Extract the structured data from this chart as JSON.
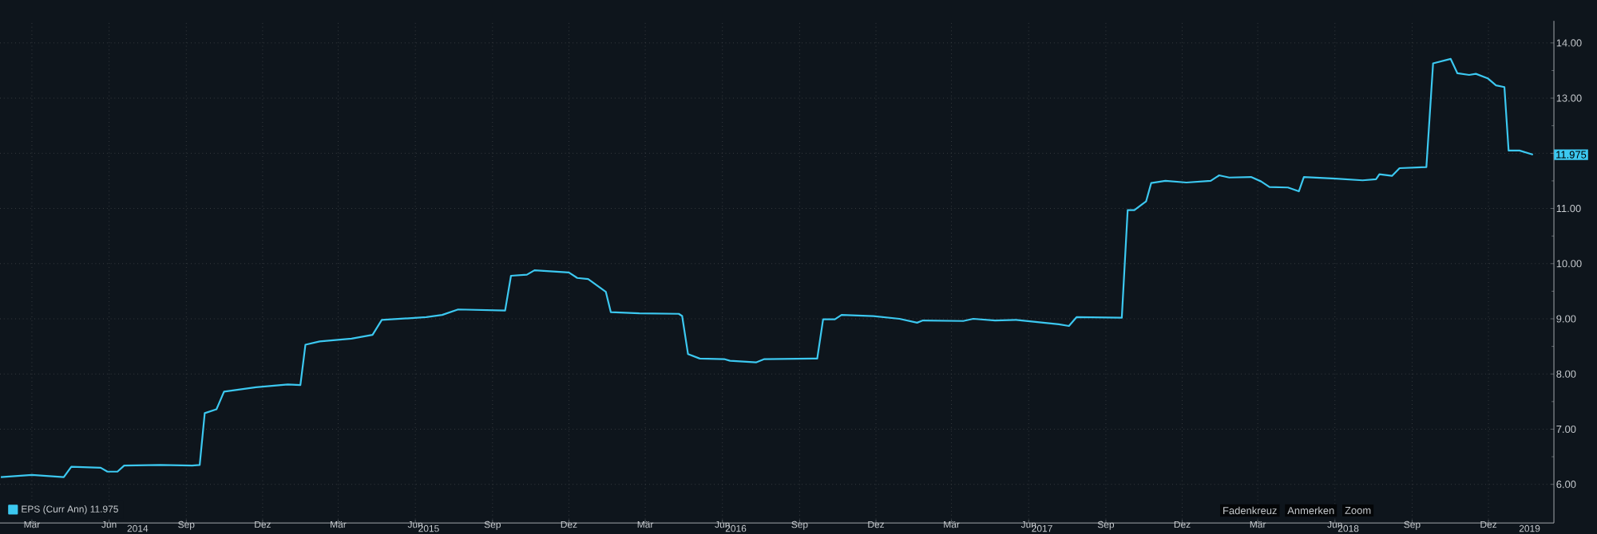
{
  "chart_data": {
    "type": "line",
    "x": [
      "2014-02-06",
      "2014-03-15",
      "2014-04-22",
      "2014-05-01",
      "2014-06-05",
      "2014-06-13",
      "2014-06-25",
      "2014-07-03",
      "2014-08-15",
      "2014-09-22",
      "2014-10-01",
      "2014-10-07",
      "2014-10-21",
      "2014-10-30",
      "2014-12-07",
      "2015-01-14",
      "2015-01-29",
      "2015-02-04",
      "2015-02-21",
      "2015-03-31",
      "2015-04-25",
      "2015-05-06",
      "2015-06-28",
      "2015-07-17",
      "2015-08-05",
      "2015-09-30",
      "2015-10-07",
      "2015-10-26",
      "2015-11-04",
      "2015-12-15",
      "2015-12-25",
      "2016-01-07",
      "2016-01-28",
      "2016-02-03",
      "2016-03-08",
      "2016-04-24",
      "2016-04-28",
      "2016-05-05",
      "2016-05-19",
      "2016-06-17",
      "2016-06-24",
      "2016-07-25",
      "2016-08-04",
      "2016-10-06",
      "2016-10-13",
      "2016-10-27",
      "2016-11-04",
      "2016-12-12",
      "2017-01-12",
      "2017-02-02",
      "2017-02-09",
      "2017-03-29",
      "2017-04-10",
      "2017-05-06",
      "2017-05-31",
      "2017-07-21",
      "2017-08-02",
      "2017-08-11",
      "2017-10-04",
      "2017-10-11",
      "2017-10-19",
      "2017-11-02",
      "2017-11-08",
      "2017-11-25",
      "2017-12-20",
      "2018-01-18",
      "2018-01-28",
      "2018-02-09",
      "2018-03-07",
      "2018-03-19",
      "2018-03-29",
      "2018-04-20",
      "2018-05-03",
      "2018-05-09",
      "2018-06-16",
      "2018-07-18",
      "2018-08-03",
      "2018-08-07",
      "2018-08-22",
      "2018-08-31",
      "2018-10-02",
      "2018-10-10",
      "2018-10-31",
      "2018-11-08",
      "2018-11-22",
      "2018-11-30",
      "2018-12-14",
      "2018-12-24",
      "2019-01-03",
      "2019-01-08",
      "2019-01-21",
      "2019-02-06"
    ],
    "series": [
      {
        "name": "EPS (Curr Ann) 11.975",
        "color": "#3cc8f0",
        "values": [
          6.13,
          6.17,
          6.13,
          6.32,
          6.3,
          6.23,
          6.23,
          6.34,
          6.35,
          6.34,
          6.35,
          7.29,
          7.36,
          7.68,
          7.76,
          7.81,
          7.8,
          8.53,
          8.59,
          8.64,
          8.71,
          8.98,
          9.03,
          9.07,
          9.17,
          9.15,
          9.78,
          9.8,
          9.88,
          9.84,
          9.74,
          9.72,
          9.49,
          9.12,
          9.1,
          9.09,
          9.05,
          8.36,
          8.28,
          8.27,
          8.24,
          8.21,
          8.27,
          8.28,
          8.99,
          8.99,
          9.07,
          9.05,
          9.0,
          8.93,
          8.97,
          8.96,
          9.0,
          8.97,
          8.98,
          8.9,
          8.87,
          9.03,
          9.02,
          10.97,
          10.97,
          11.13,
          11.46,
          11.5,
          11.47,
          11.5,
          11.6,
          11.56,
          11.57,
          11.49,
          11.39,
          11.38,
          11.31,
          11.57,
          11.54,
          11.51,
          11.53,
          11.62,
          11.59,
          11.73,
          11.75,
          13.63,
          13.71,
          13.45,
          13.42,
          13.44,
          13.36,
          13.23,
          13.2,
          12.05,
          12.05,
          11.975
        ]
      }
    ],
    "xlim": [
      "2014-02-05",
      "2019-03-03"
    ],
    "xticks": [
      {
        "value": "2014-03-15",
        "label": "Mär"
      },
      {
        "value": "2014-06-15",
        "label": "Jun"
      },
      {
        "value": "2014-09-15",
        "label": "Sep"
      },
      {
        "value": "2014-12-15",
        "label": "Dez"
      },
      {
        "value": "2015-03-15",
        "label": "Mär"
      },
      {
        "value": "2015-06-15",
        "label": "Jun"
      },
      {
        "value": "2015-09-15",
        "label": "Sep"
      },
      {
        "value": "2015-12-15",
        "label": "Dez"
      },
      {
        "value": "2016-03-15",
        "label": "Mär"
      },
      {
        "value": "2016-06-15",
        "label": "Jun"
      },
      {
        "value": "2016-09-15",
        "label": "Sep"
      },
      {
        "value": "2016-12-15",
        "label": "Dez"
      },
      {
        "value": "2017-03-15",
        "label": "Mär"
      },
      {
        "value": "2017-06-15",
        "label": "Jun"
      },
      {
        "value": "2017-09-15",
        "label": "Sep"
      },
      {
        "value": "2017-12-15",
        "label": "Dez"
      },
      {
        "value": "2018-03-15",
        "label": "Mär"
      },
      {
        "value": "2018-06-15",
        "label": "Jun"
      },
      {
        "value": "2018-09-15",
        "label": "Sep"
      },
      {
        "value": "2018-12-15",
        "label": "Dez"
      }
    ],
    "x2lim": [
      "2014-02-05",
      "2019-03-03"
    ],
    "x2ticks": [
      {
        "value": "2014-07-19",
        "label": "2014"
      },
      {
        "value": "2015-07-01",
        "label": "2015"
      },
      {
        "value": "2016-07-01",
        "label": "2016"
      },
      {
        "value": "2017-07-01",
        "label": "2017"
      },
      {
        "value": "2018-07-01",
        "label": "2018"
      },
      {
        "value": "2019-02-02",
        "label": "2019"
      }
    ],
    "ylim": [
      5.3,
      14.4
    ],
    "yticks": [
      {
        "value": 6,
        "label": "6.00"
      },
      {
        "value": 7,
        "label": "7.00"
      },
      {
        "value": 8,
        "label": "8.00"
      },
      {
        "value": 9,
        "label": "9.00"
      },
      {
        "value": 10,
        "label": "10.00"
      },
      {
        "value": 11,
        "label": "11.00"
      },
      {
        "value": 12,
        "label": null
      },
      {
        "value": 13,
        "label": "13.00"
      },
      {
        "value": 14,
        "label": "14.00"
      }
    ],
    "annotations": [
      {
        "text": "11.975",
        "x": "2019-02-06",
        "y": 11.975
      },
      "Fadenkreuz",
      "Anmerken",
      "Zoom"
    ],
    "grid": true,
    "legend": "bottom left",
    "marker": "none",
    "line_style": "solid"
  }
}
